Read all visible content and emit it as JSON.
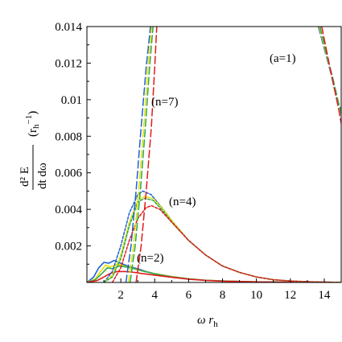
{
  "chart_data": {
    "type": "line",
    "x_range": [
      0,
      15
    ],
    "y_range": [
      0,
      0.014
    ],
    "x_ticks": [
      2,
      4,
      6,
      8,
      10,
      12,
      14
    ],
    "y_ticks": [
      0.002,
      0.004,
      0.006,
      0.008,
      0.01,
      0.012,
      0.014
    ],
    "x_tick_labels": [
      "2",
      "4",
      "6",
      "8",
      "10",
      "12",
      "14"
    ],
    "y_tick_labels": [
      "0.002",
      "0.004",
      "0.006",
      "0.008",
      "0.01",
      "0.012",
      "0.014"
    ],
    "xlabel": {
      "main": "ω r",
      "sub": "h"
    },
    "ylabel": {
      "numerator": "d² E",
      "denominator": "dt dω",
      "unit_main": "(r",
      "unit_sub": "h",
      "unit_sup": "−1",
      "unit_close": ")"
    },
    "annotations": [
      "(a=1)",
      "(n=7)",
      "(n=4)",
      "(n=2)"
    ],
    "series_colors": [
      "#1f5fd6",
      "#e8e000",
      "#2ea84a",
      "#e11b1b"
    ],
    "groups": [
      {
        "label": "n=2",
        "style": "solid",
        "series": [
          {
            "color": "#1f5fd6",
            "x": [
              0,
              0.4,
              0.7,
              1.0,
              1.3,
              1.6,
              2.0,
              2.4,
              3.0,
              3.5,
              4.0,
              5.0,
              6.0,
              7.0,
              8.0,
              10.0,
              12.0,
              15.0
            ],
            "y": [
              0,
              0.0003,
              0.0008,
              0.0011,
              0.00105,
              0.0012,
              0.00105,
              0.0009,
              0.00075,
              0.0006,
              0.00048,
              0.00032,
              0.0002,
              0.00012,
              8e-05,
              3e-05,
              1e-05,
              0
            ]
          },
          {
            "color": "#e8e000",
            "x": [
              0,
              0.5,
              0.8,
              1.1,
              1.4,
              1.8,
              2.2,
              2.7,
              3.2,
              4.0,
              5.0,
              6.0,
              7.0,
              8.0,
              10.0,
              12.0,
              15.0
            ],
            "y": [
              0,
              0.0002,
              0.0006,
              0.00095,
              0.00085,
              0.001,
              0.0009,
              0.00078,
              0.00065,
              0.00048,
              0.00032,
              0.0002,
              0.00012,
              8e-05,
              3e-05,
              1e-05,
              0
            ]
          },
          {
            "color": "#2ea84a",
            "x": [
              0,
              0.5,
              0.9,
              1.2,
              1.5,
              1.9,
              2.3,
              2.8,
              3.3,
              4.0,
              5.0,
              6.0,
              7.0,
              8.0,
              10.0,
              12.0,
              15.0
            ],
            "y": [
              0,
              0.00015,
              0.0005,
              0.0008,
              0.00075,
              0.0009,
              0.00085,
              0.00075,
              0.00062,
              0.00047,
              0.00031,
              0.0002,
              0.00012,
              8e-05,
              3e-05,
              1e-05,
              0
            ]
          },
          {
            "color": "#e11b1b",
            "x": [
              0,
              0.6,
              1.0,
              1.4,
              1.8,
              2.3,
              2.8,
              3.3,
              4.0,
              5.0,
              6.0,
              7.0,
              8.0,
              10.0,
              12.0,
              15.0
            ],
            "y": [
              0,
              0.0001,
              0.0003,
              0.0005,
              0.0006,
              0.0006,
              0.00055,
              0.00048,
              0.0004,
              0.00028,
              0.00018,
              0.00011,
              7e-05,
              3e-05,
              1e-05,
              0
            ]
          }
        ]
      },
      {
        "label": "n=4",
        "style": "dotted",
        "series": [
          {
            "color": "#1f5fd6",
            "x": [
              1.0,
              1.5,
              2.0,
              2.5,
              3.0,
              3.3,
              3.8,
              4.5,
              5.0,
              6.0,
              7.0,
              8.0,
              9.0,
              10.0,
              11.0,
              12.0,
              13.0,
              14.0,
              15.0
            ],
            "y": [
              0,
              0.0006,
              0.002,
              0.0038,
              0.0048,
              0.005,
              0.0048,
              0.004,
              0.0034,
              0.0023,
              0.0015,
              0.0009,
              0.00055,
              0.0003,
              0.00015,
              8e-05,
              4e-05,
              2e-05,
              0
            ]
          },
          {
            "color": "#e8e000",
            "x": [
              1.0,
              1.5,
              2.0,
              2.5,
              3.0,
              3.4,
              3.9,
              4.5,
              5.0,
              6.0,
              7.0,
              8.0,
              9.0,
              10.0,
              11.0,
              12.0,
              13.0,
              14.0,
              15.0
            ],
            "y": [
              0,
              0.0004,
              0.0015,
              0.0033,
              0.0045,
              0.0047,
              0.0046,
              0.004,
              0.0034,
              0.0023,
              0.0015,
              0.0009,
              0.00055,
              0.0003,
              0.00015,
              8e-05,
              4e-05,
              2e-05,
              0
            ]
          },
          {
            "color": "#2ea84a",
            "x": [
              1.0,
              1.5,
              2.0,
              2.5,
              3.0,
              3.4,
              3.9,
              4.5,
              5.0,
              6.0,
              7.0,
              8.0,
              9.0,
              10.0,
              11.0,
              12.0,
              13.0,
              14.0,
              15.0
            ],
            "y": [
              0,
              0.0003,
              0.0013,
              0.0031,
              0.0044,
              0.0046,
              0.0045,
              0.0039,
              0.0033,
              0.0023,
              0.0015,
              0.0009,
              0.00055,
              0.0003,
              0.00015,
              8e-05,
              4e-05,
              2e-05,
              0
            ]
          },
          {
            "color": "#e11b1b",
            "x": [
              1.5,
              2.0,
              2.5,
              3.0,
              3.5,
              3.8,
              4.3,
              5.0,
              6.0,
              7.0,
              8.0,
              9.0,
              10.0,
              11.0,
              12.0,
              13.0,
              14.0,
              15.0
            ],
            "y": [
              0,
              0.0008,
              0.0023,
              0.0035,
              0.0041,
              0.0042,
              0.004,
              0.0033,
              0.0023,
              0.0015,
              0.0009,
              0.00055,
              0.0003,
              0.00015,
              8e-05,
              4e-05,
              2e-05,
              0
            ]
          }
        ]
      },
      {
        "label": "n=7",
        "style": "dashed",
        "series": [
          {
            "color": "#1f5fd6",
            "x": [
              2.3,
              2.6,
              2.9,
              3.2,
              3.5,
              3.75
            ],
            "y": [
              0,
              0.002,
              0.005,
              0.0085,
              0.0118,
              0.014
            ]
          },
          {
            "color": "#e8e000",
            "x": [
              2.45,
              2.75,
              3.05,
              3.35,
              3.6,
              3.82
            ],
            "y": [
              0,
              0.002,
              0.005,
              0.0085,
              0.0118,
              0.014
            ]
          },
          {
            "color": "#2ea84a",
            "x": [
              2.55,
              2.85,
              3.15,
              3.45,
              3.7,
              3.9
            ],
            "y": [
              0,
              0.002,
              0.005,
              0.0085,
              0.0118,
              0.014
            ]
          },
          {
            "color": "#e11b1b",
            "x": [
              2.9,
              3.2,
              3.5,
              3.8,
              4.0,
              4.12
            ],
            "y": [
              0,
              0.002,
              0.005,
              0.0085,
              0.0118,
              0.014
            ]
          }
        ]
      },
      {
        "label": "n=7 tail",
        "style": "dashed",
        "series": [
          {
            "color": "#1f5fd6",
            "x": [
              13.65,
              14.0,
              14.4,
              14.7,
              15.0
            ],
            "y": [
              0.014,
              0.0128,
              0.0114,
              0.0102,
              0.0094
            ]
          },
          {
            "color": "#e8e000",
            "x": [
              13.7,
              14.05,
              14.45,
              14.75,
              15.0
            ],
            "y": [
              0.014,
              0.0127,
              0.0113,
              0.0101,
              0.0093
            ]
          },
          {
            "color": "#2ea84a",
            "x": [
              13.75,
              14.1,
              14.5,
              14.8,
              15.0
            ],
            "y": [
              0.014,
              0.0126,
              0.0112,
              0.01,
              0.0092
            ]
          },
          {
            "color": "#e11b1b",
            "x": [
              13.85,
              14.2,
              14.55,
              14.85,
              15.0
            ],
            "y": [
              0.014,
              0.0124,
              0.0108,
              0.0095,
              0.0087
            ]
          }
        ]
      }
    ]
  }
}
